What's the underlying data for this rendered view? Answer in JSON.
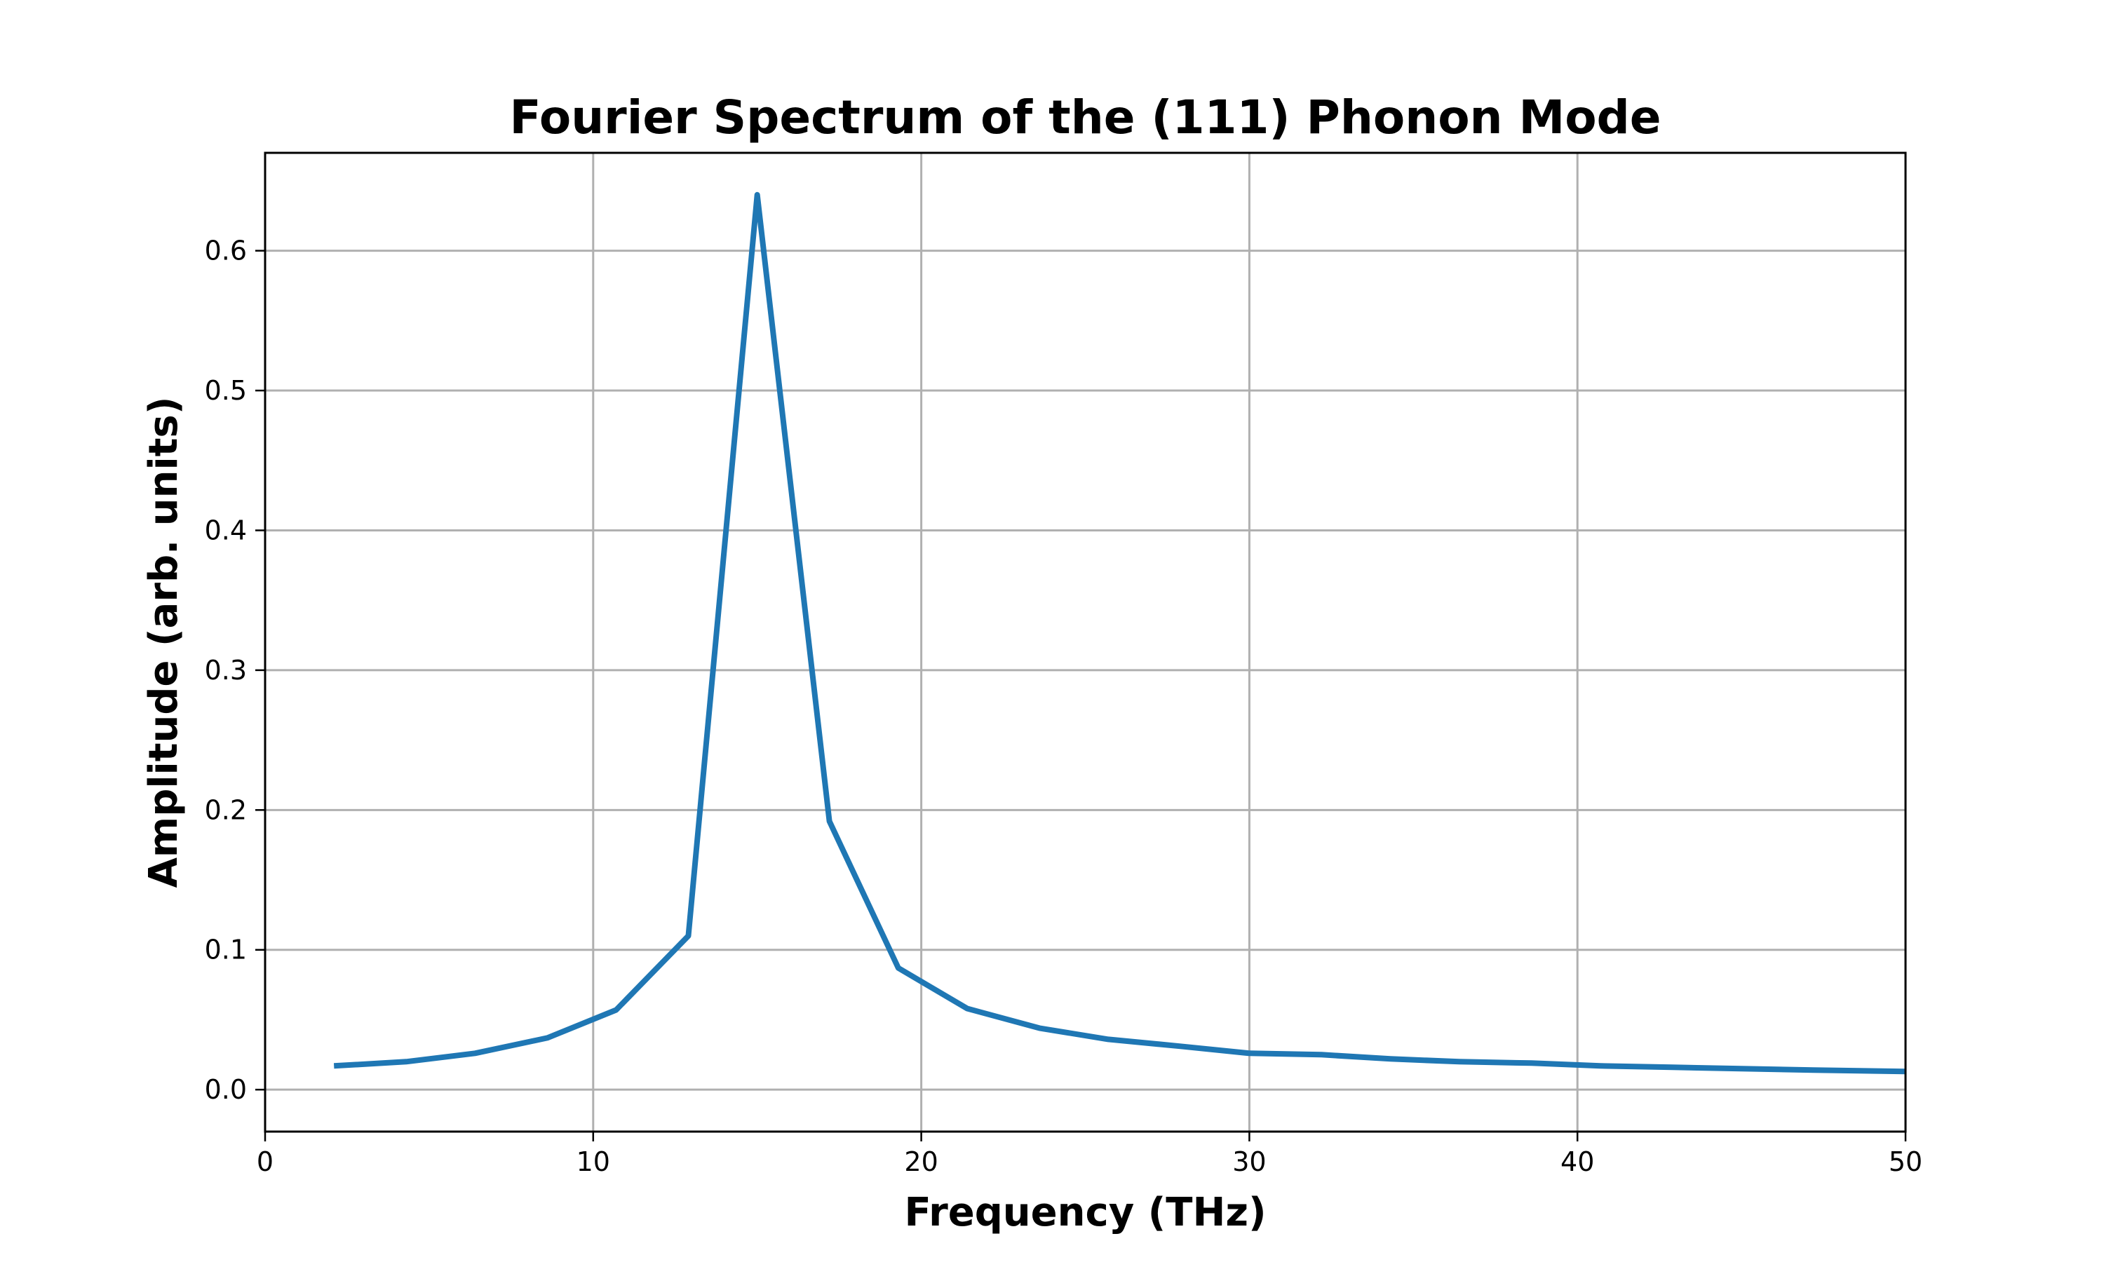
{
  "chart_data": {
    "type": "line",
    "title": "Fourier Spectrum of the (111) Phonon Mode",
    "xlabel": "Frequency (THz)",
    "ylabel": "Amplitude (arb. units)",
    "xlim": [
      0,
      50
    ],
    "ylim": [
      -0.03,
      0.67
    ],
    "xticks": [
      0,
      10,
      20,
      30,
      40,
      50
    ],
    "xtick_labels": [
      "0",
      "10",
      "20",
      "30",
      "40",
      "50"
    ],
    "yticks": [
      0.0,
      0.1,
      0.2,
      0.3,
      0.4,
      0.5,
      0.6
    ],
    "ytick_labels": [
      "0.0",
      "0.1",
      "0.2",
      "0.3",
      "0.4",
      "0.5",
      "0.6"
    ],
    "grid": true,
    "series": [
      {
        "color": "#1f77b4",
        "x": [
          2.1,
          4.3,
          6.4,
          8.6,
          10.7,
          12.9,
          15.0,
          17.2,
          19.3,
          21.4,
          23.6,
          25.7,
          27.9,
          30.0,
          32.2,
          34.3,
          36.4,
          38.6,
          40.7,
          42.9,
          45.0,
          47.2,
          50.0
        ],
        "y": [
          0.017,
          0.02,
          0.026,
          0.037,
          0.057,
          0.11,
          0.64,
          0.192,
          0.087,
          0.058,
          0.044,
          0.036,
          0.031,
          0.026,
          0.025,
          0.022,
          0.02,
          0.019,
          0.017,
          0.016,
          0.015,
          0.014,
          0.013
        ]
      }
    ]
  }
}
